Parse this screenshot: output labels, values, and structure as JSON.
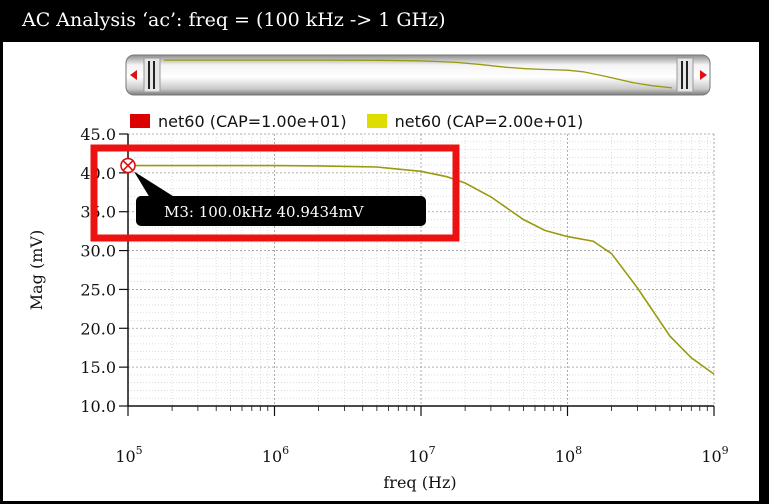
{
  "window": {
    "title": "AC Analysis ‘ac’: freq = (100 kHz -> 1 GHz)"
  },
  "colors": {
    "series1": "#dd0000",
    "series2": "#dddd00",
    "trace": "#9a9a10",
    "highlight": "#ee1111",
    "grid": "#c8c8c8"
  },
  "chart_data": {
    "type": "line",
    "title": "",
    "xlabel": "freq (Hz)",
    "ylabel": "Mag (mV)",
    "xscale": "log",
    "xlim": [
      100000,
      1000000000
    ],
    "ylim": [
      10.0,
      45.0
    ],
    "grid": true,
    "legend_position": "top",
    "xticks": [
      {
        "value": 100000,
        "base": "10",
        "exp": "5"
      },
      {
        "value": 1000000,
        "base": "10",
        "exp": "6"
      },
      {
        "value": 10000000,
        "base": "10",
        "exp": "7"
      },
      {
        "value": 100000000,
        "base": "10",
        "exp": "8"
      },
      {
        "value": 1000000000,
        "base": "10",
        "exp": "9"
      }
    ],
    "yticks": [
      {
        "value": 10.0,
        "label": "10.0"
      },
      {
        "value": 15.0,
        "label": "15.0"
      },
      {
        "value": 20.0,
        "label": "20.0"
      },
      {
        "value": 25.0,
        "label": "25.0"
      },
      {
        "value": 30.0,
        "label": "30.0"
      },
      {
        "value": 35.0,
        "label": "35.0"
      },
      {
        "value": 40.0,
        "label": "40.0"
      },
      {
        "value": 45.0,
        "label": "45.0"
      }
    ],
    "series": [
      {
        "name": "net60 (CAP=1.00e+01)",
        "color": "#dd0000",
        "x": [],
        "y": []
      },
      {
        "name": "net60 (CAP=2.00e+01)",
        "color": "#dddd00",
        "x": [
          100000,
          200000,
          500000,
          1000000,
          2000000,
          5000000,
          10000000,
          15000000,
          20000000,
          30000000,
          50000000,
          70000000,
          100000000,
          150000000,
          200000000,
          300000000,
          500000000,
          700000000,
          1000000000
        ],
        "y": [
          40.94,
          40.94,
          40.94,
          40.93,
          40.9,
          40.75,
          40.2,
          39.5,
          38.7,
          36.9,
          34.0,
          32.6,
          31.8,
          31.2,
          29.6,
          25.2,
          19.0,
          16.2,
          14.1
        ]
      }
    ],
    "marker": {
      "label": "M3: 100.0kHz 40.9434mV",
      "x": 100000,
      "y": 40.9434
    }
  }
}
